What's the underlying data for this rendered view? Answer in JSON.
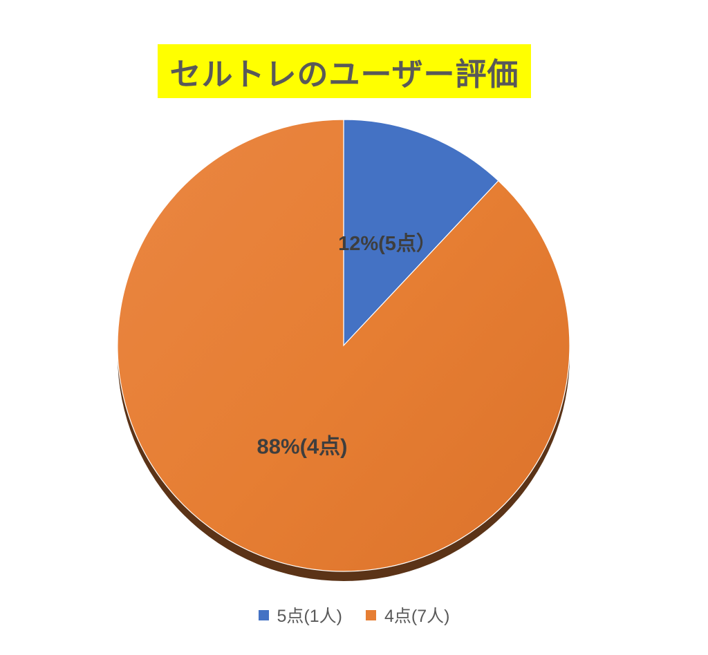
{
  "page": {
    "background_color": "#ffffff"
  },
  "title": {
    "text": "セルトレのユーザー評価",
    "highlight_color": "#ffff00",
    "text_color": "#595959"
  },
  "chart_data": {
    "type": "pie",
    "title": "セルトレのユーザー評価",
    "categories": [
      "5点(1人)",
      "4点(7人)"
    ],
    "values": [
      1,
      7
    ],
    "percentages": [
      12,
      88
    ],
    "slices": [
      {
        "legend_label": "5点(1人)",
        "people": 1,
        "percent": 12,
        "data_label": "12%(5点）",
        "color": "#4472c4"
      },
      {
        "legend_label": "4点(7人)",
        "people": 7,
        "percent": 88,
        "data_label": "88%(4点)",
        "color": "#e67e33"
      }
    ],
    "start_angle_deg": 0,
    "direction": "clockwise",
    "legend_position": "bottom",
    "style": "3d-pie-with-bottom-rim",
    "rim_color": "#5b3317",
    "slice_border_color": "#ffffff",
    "data_label_color": "#3e3e3e",
    "legend_text_color": "#595959"
  }
}
